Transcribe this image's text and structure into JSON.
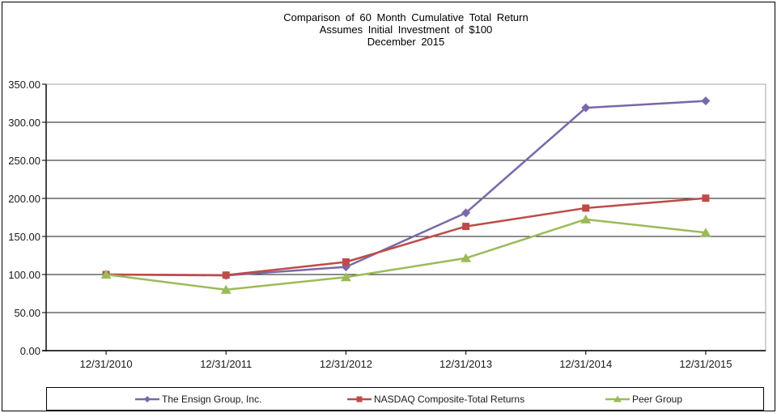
{
  "chart_data": {
    "type": "line",
    "title": "Comparison of 60 Month Cumulative Total Return",
    "subtitle": "Assumes Initial Investment of $100",
    "period_label": "December 2015",
    "categories": [
      "12/31/2010",
      "12/31/2011",
      "12/31/2012",
      "12/31/2013",
      "12/31/2014",
      "12/31/2015"
    ],
    "series": [
      {
        "name": "The Ensign Group, Inc.",
        "marker": "diamond",
        "color": "#7A68A8",
        "values": [
          100.0,
          98.8,
          110.0,
          181.0,
          319.0,
          328.0
        ]
      },
      {
        "name": "NASDAQ Composite-Total Returns",
        "marker": "square",
        "color": "#BE4B48",
        "values": [
          100.0,
          99.2,
          116.5,
          163.2,
          187.3,
          200.3
        ]
      },
      {
        "name": "Peer Group",
        "marker": "triangle",
        "color": "#9BBB59",
        "values": [
          100.0,
          80.0,
          96.5,
          121.5,
          172.5,
          155.0
        ]
      }
    ],
    "ylim": [
      0,
      350
    ],
    "y_step": 50,
    "y_ticks": [
      {
        "value": 0,
        "label": "0.00"
      },
      {
        "value": 50,
        "label": "50.00"
      },
      {
        "value": 100,
        "label": "100.00"
      },
      {
        "value": 150,
        "label": "150.00"
      },
      {
        "value": 200,
        "label": "200.00"
      },
      {
        "value": 250,
        "label": "250.00"
      },
      {
        "value": 300,
        "label": "300.00"
      },
      {
        "value": 350,
        "label": "350.00"
      }
    ],
    "grid": "horizontal",
    "legend_position": "bottom",
    "colors": {
      "gridline": "#1a1a1a",
      "axis": "#1a1a1a",
      "plot_border_gray": "#A6A6A6",
      "text": "#000000"
    }
  }
}
